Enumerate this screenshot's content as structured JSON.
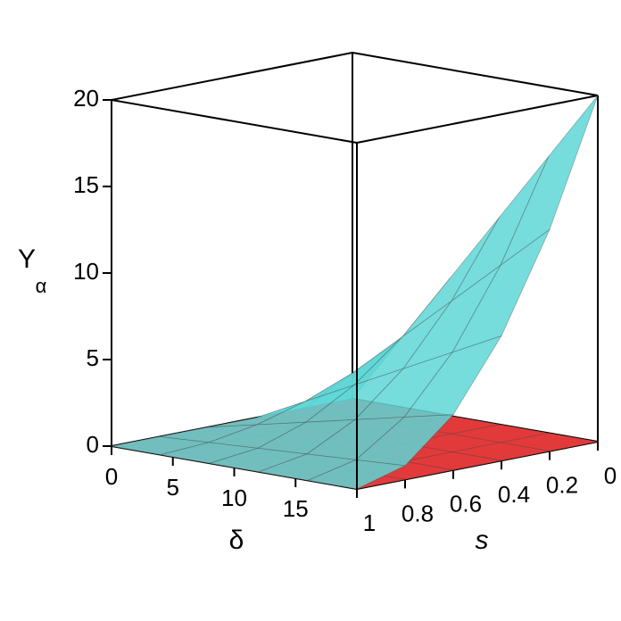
{
  "chart_data": {
    "type": "surface3d",
    "xlabel": "δ",
    "ylabel": "s",
    "zlabel": {
      "symbol": "Υ",
      "subscript": "α"
    },
    "x": [
      0,
      4,
      8,
      12,
      16,
      20
    ],
    "y": [
      0,
      0.2,
      0.4,
      0.6,
      0.8,
      1
    ],
    "xlim": [
      0,
      20
    ],
    "xticks": [
      0,
      5,
      10,
      15
    ],
    "ylim": [
      0,
      1
    ],
    "yticks": [
      1,
      0.8,
      0.6,
      0.4,
      0.2,
      0
    ],
    "zlim": [
      0,
      20
    ],
    "zticks": [
      0,
      5,
      10,
      15,
      20
    ],
    "series": [
      {
        "color": "#e23a3a",
        "values": [
          [
            0,
            0,
            0,
            0,
            0,
            0
          ],
          [
            0,
            0,
            0,
            0,
            0,
            0
          ],
          [
            0,
            0,
            0,
            0,
            0,
            0
          ],
          [
            0,
            0,
            0,
            0,
            0,
            0
          ],
          [
            0,
            0,
            0,
            0,
            0,
            0
          ],
          [
            0,
            0,
            0,
            0,
            0,
            0
          ]
        ]
      },
      {
        "color": "#5ed6d6",
        "values": [
          [
            0,
            4,
            8,
            12,
            16,
            20
          ],
          [
            0,
            2.56,
            5.12,
            7.68,
            10.24,
            12.8
          ],
          [
            0,
            1.44,
            2.88,
            4.32,
            5.76,
            7.2
          ],
          [
            0,
            0.64,
            1.28,
            1.92,
            2.56,
            3.2
          ],
          [
            0,
            0.16,
            0.32,
            0.48,
            0.64,
            0.8
          ],
          [
            0,
            0,
            0,
            0,
            0,
            0
          ]
        ]
      }
    ]
  }
}
